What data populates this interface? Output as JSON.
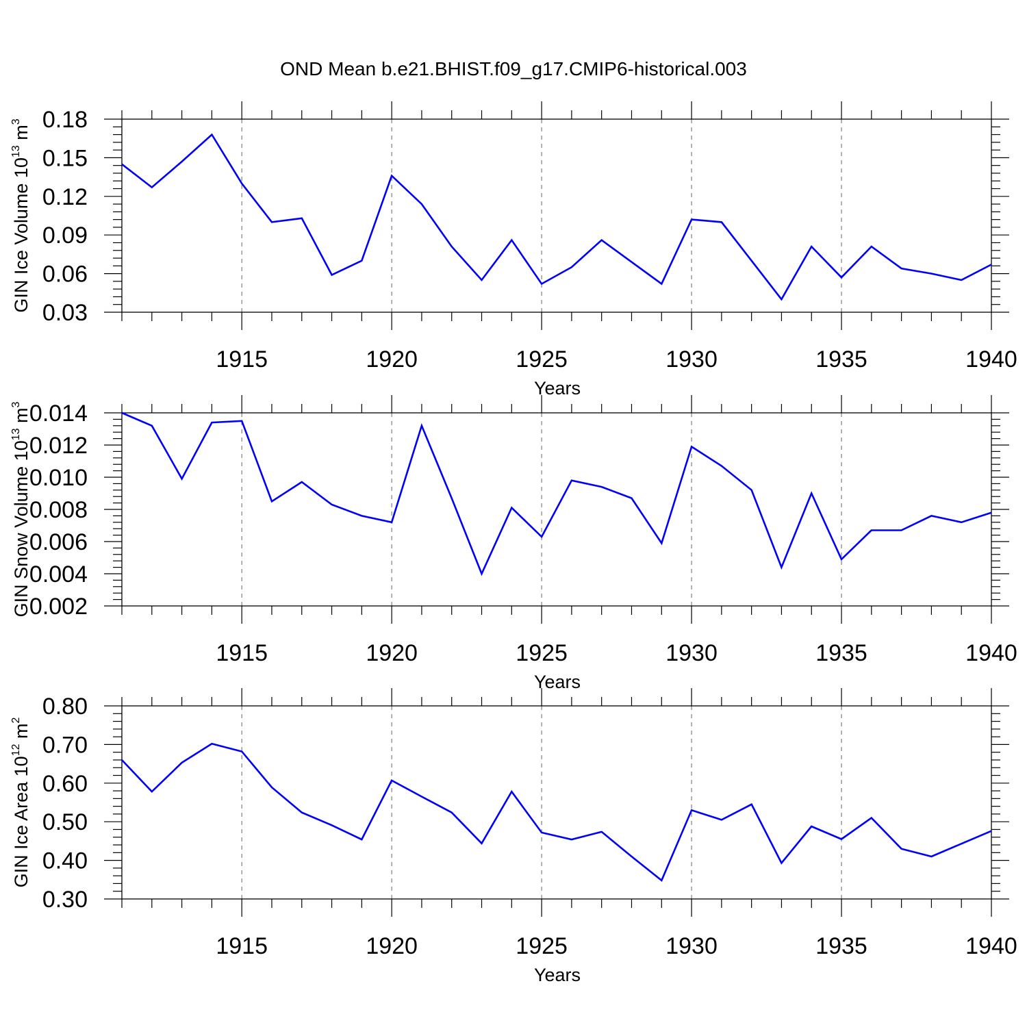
{
  "title": "OND Mean b.e21.BHIST.f09_g17.CMIP6-historical.003",
  "colors": {
    "series": "#0000ff",
    "grid": "#666666",
    "axis": "#000000"
  },
  "chart_data": [
    {
      "type": "line",
      "ylabel": {
        "text": "GIN Ice Volume 10",
        "exp1": "13",
        "unit": " m",
        "exp2": "3"
      },
      "xlabel": "Years",
      "xlim": [
        1911,
        1940
      ],
      "ylim": [
        0.03,
        0.18
      ],
      "y_ticks": [
        "0.03",
        "0.06",
        "0.09",
        "0.12",
        "0.15",
        "0.18"
      ],
      "x_ticks": [
        "1915",
        "1920",
        "1925",
        "1930",
        "1935",
        "1940"
      ],
      "grid": "vertical dashed at major x ticks",
      "x": [
        1911,
        1912,
        1913,
        1914,
        1915,
        1916,
        1917,
        1918,
        1919,
        1920,
        1921,
        1922,
        1923,
        1924,
        1925,
        1926,
        1927,
        1928,
        1929,
        1930,
        1931,
        1932,
        1933,
        1934,
        1935,
        1936,
        1937,
        1938,
        1939,
        1940
      ],
      "series": [
        {
          "values": [
            0.145,
            0.127,
            0.147,
            0.168,
            0.13,
            0.1,
            0.103,
            0.059,
            0.07,
            0.136,
            0.114,
            0.081,
            0.055,
            0.086,
            0.052,
            0.065,
            0.086,
            0.069,
            0.052,
            0.102,
            0.1,
            0.07,
            0.04,
            0.081,
            0.057,
            0.081,
            0.064,
            0.06,
            0.055,
            0.067
          ]
        }
      ]
    },
    {
      "type": "line",
      "ylabel": {
        "text": "GIN Snow Volume 10",
        "exp1": "13",
        "unit": " m",
        "exp2": "3"
      },
      "xlabel": "Years",
      "xlim": [
        1911,
        1940
      ],
      "ylim": [
        0.002,
        0.014
      ],
      "y_ticks": [
        "0.002",
        "0.004",
        "0.006",
        "0.008",
        "0.010",
        "0.012",
        "0.014"
      ],
      "x_ticks": [
        "1915",
        "1920",
        "1925",
        "1930",
        "1935",
        "1940"
      ],
      "grid": "vertical dashed at major x ticks",
      "x": [
        1911,
        1912,
        1913,
        1914,
        1915,
        1916,
        1917,
        1918,
        1919,
        1920,
        1921,
        1922,
        1923,
        1924,
        1925,
        1926,
        1927,
        1928,
        1929,
        1930,
        1931,
        1932,
        1933,
        1934,
        1935,
        1936,
        1937,
        1938,
        1939,
        1940
      ],
      "series": [
        {
          "values": [
            0.014,
            0.0132,
            0.0099,
            0.0134,
            0.0135,
            0.0085,
            0.0097,
            0.0083,
            0.0076,
            0.0072,
            0.0132,
            0.0087,
            0.004,
            0.0081,
            0.0063,
            0.0098,
            0.0094,
            0.0087,
            0.0059,
            0.0119,
            0.0107,
            0.0092,
            0.0044,
            0.009,
            0.0049,
            0.0067,
            0.0067,
            0.0076,
            0.0072,
            0.0078
          ]
        }
      ]
    },
    {
      "type": "line",
      "ylabel": {
        "text": "GIN Ice Area 10",
        "exp1": "12",
        "unit": " m",
        "exp2": "2"
      },
      "xlabel": "Years",
      "xlim": [
        1911,
        1940
      ],
      "ylim": [
        0.3,
        0.8
      ],
      "y_ticks": [
        "0.30",
        "0.40",
        "0.50",
        "0.60",
        "0.70",
        "0.80"
      ],
      "x_ticks": [
        "1915",
        "1920",
        "1925",
        "1930",
        "1935",
        "1940"
      ],
      "grid": "vertical dashed at major x ticks",
      "x": [
        1911,
        1912,
        1913,
        1914,
        1915,
        1916,
        1917,
        1918,
        1919,
        1920,
        1921,
        1922,
        1923,
        1924,
        1925,
        1926,
        1927,
        1928,
        1929,
        1930,
        1931,
        1932,
        1933,
        1934,
        1935,
        1936,
        1937,
        1938,
        1939,
        1940
      ],
      "series": [
        {
          "values": [
            0.66,
            0.578,
            0.653,
            0.702,
            0.682,
            0.589,
            0.524,
            0.491,
            0.454,
            0.607,
            0.565,
            0.524,
            0.444,
            0.578,
            0.472,
            0.454,
            0.474,
            0.41,
            0.348,
            0.53,
            0.505,
            0.545,
            0.393,
            0.488,
            0.455,
            0.51,
            0.43,
            0.41,
            0.443,
            0.476
          ]
        }
      ]
    }
  ]
}
